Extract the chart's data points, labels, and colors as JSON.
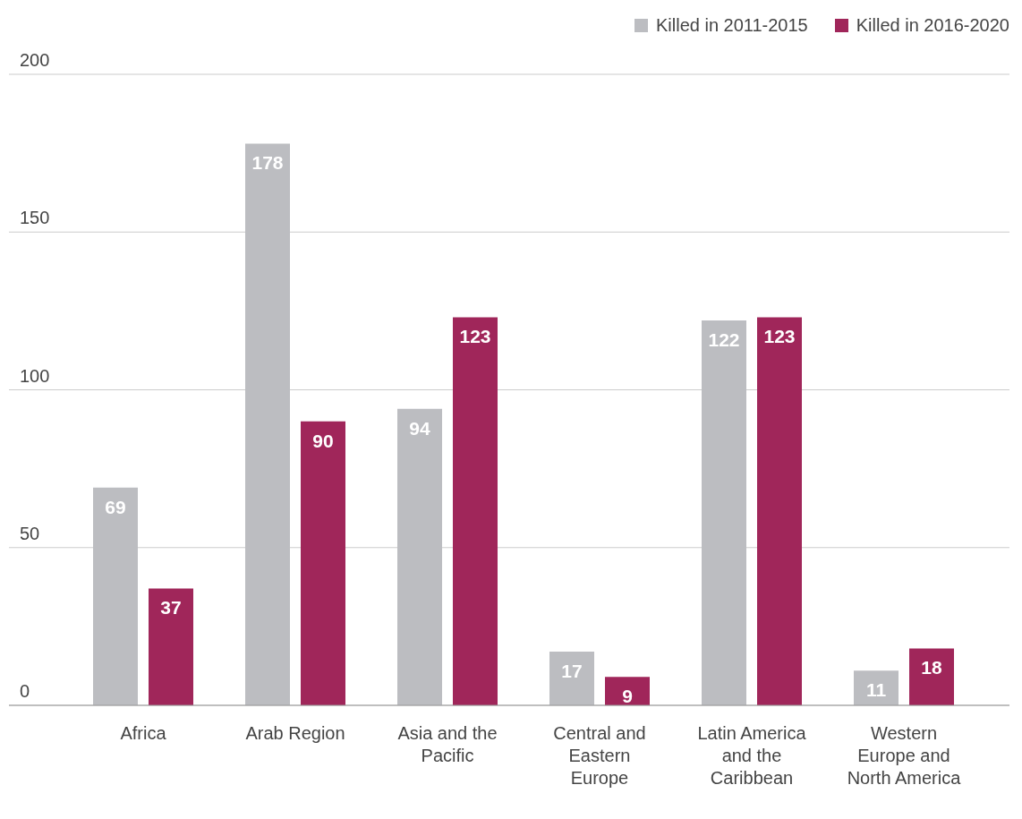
{
  "chart_data": {
    "type": "bar",
    "categories": [
      "Africa",
      "Arab Region",
      "Asia and the Pacific",
      "Central and Eastern Europe",
      "Latin America and the Caribbean",
      "Western Europe and North America"
    ],
    "series": [
      {
        "name": "Killed in 2011-2015",
        "color": "#bcbdc1",
        "values": [
          69,
          178,
          94,
          17,
          122,
          11
        ]
      },
      {
        "name": "Killed in 2016-2020",
        "color": "#a0265a",
        "values": [
          37,
          90,
          123,
          9,
          123,
          18
        ]
      }
    ],
    "ylim": [
      0,
      200
    ],
    "yticks": [
      0,
      50,
      100,
      150,
      200
    ],
    "grid": "y",
    "legend": "top right",
    "data_labels": true
  }
}
